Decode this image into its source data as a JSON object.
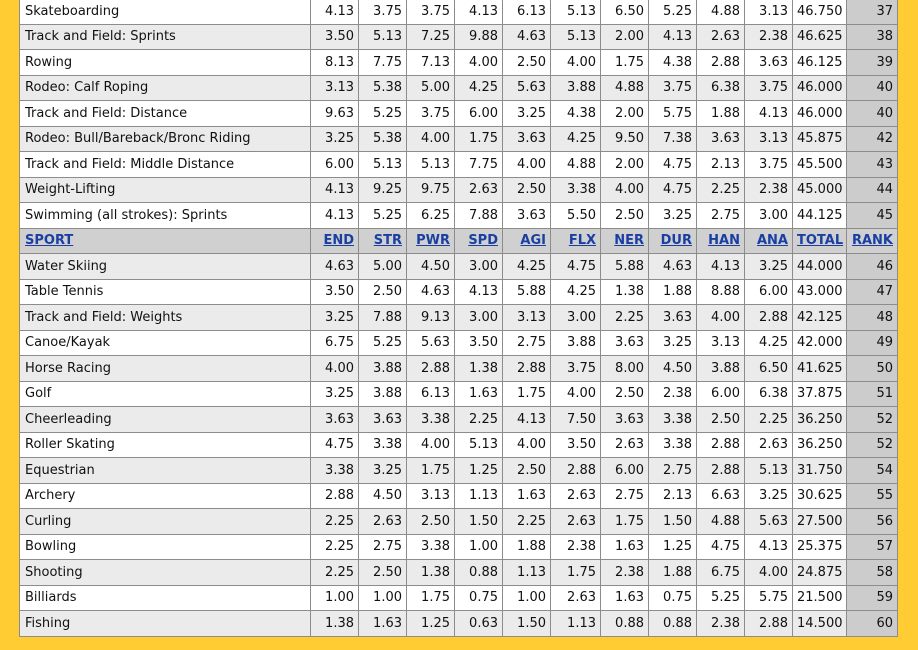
{
  "header": {
    "sport": "SPORT",
    "end": "END",
    "str": "STR",
    "pwr": "PWR",
    "spd": "SPD",
    "agi": "AGI",
    "flx": "FLX",
    "ner": "NER",
    "dur": "DUR",
    "han": "HAN",
    "ana": "ANA",
    "total": "TOTAL",
    "rank": "RANK"
  },
  "rows_top": [
    [
      "Skateboarding",
      "4.13",
      "3.75",
      "3.75",
      "4.13",
      "6.13",
      "5.13",
      "6.50",
      "5.25",
      "4.88",
      "3.13",
      "46.750",
      "37"
    ],
    [
      "Track and Field: Sprints",
      "3.50",
      "5.13",
      "7.25",
      "9.88",
      "4.63",
      "5.13",
      "2.00",
      "4.13",
      "2.63",
      "2.38",
      "46.625",
      "38"
    ],
    [
      "Rowing",
      "8.13",
      "7.75",
      "7.13",
      "4.00",
      "2.50",
      "4.00",
      "1.75",
      "4.38",
      "2.88",
      "3.63",
      "46.125",
      "39"
    ],
    [
      "Rodeo: Calf Roping",
      "3.13",
      "5.38",
      "5.00",
      "4.25",
      "5.63",
      "3.88",
      "4.88",
      "3.75",
      "6.38",
      "3.75",
      "46.000",
      "40"
    ],
    [
      "Track and Field: Distance",
      "9.63",
      "5.25",
      "3.75",
      "6.00",
      "3.25",
      "4.38",
      "2.00",
      "5.75",
      "1.88",
      "4.13",
      "46.000",
      "40"
    ],
    [
      "Rodeo: Bull/Bareback/Bronc Riding",
      "3.25",
      "5.38",
      "4.00",
      "1.75",
      "3.63",
      "4.25",
      "9.50",
      "7.38",
      "3.63",
      "3.13",
      "45.875",
      "42"
    ],
    [
      "Track and Field: Middle Distance",
      "6.00",
      "5.13",
      "5.13",
      "7.75",
      "4.00",
      "4.88",
      "2.00",
      "4.75",
      "2.13",
      "3.75",
      "45.500",
      "43"
    ],
    [
      "Weight-Lifting",
      "4.13",
      "9.25",
      "9.75",
      "2.63",
      "2.50",
      "3.38",
      "4.00",
      "4.75",
      "2.25",
      "2.38",
      "45.000",
      "44"
    ],
    [
      "Swimming (all strokes): Sprints",
      "4.13",
      "5.25",
      "6.25",
      "7.88",
      "3.63",
      "5.50",
      "2.50",
      "3.25",
      "2.75",
      "3.00",
      "44.125",
      "45"
    ]
  ],
  "rows_bottom": [
    [
      "Water Skiing",
      "4.63",
      "5.00",
      "4.50",
      "3.00",
      "4.25",
      "4.75",
      "5.88",
      "4.63",
      "4.13",
      "3.25",
      "44.000",
      "46"
    ],
    [
      "Table Tennis",
      "3.50",
      "2.50",
      "4.63",
      "4.13",
      "5.88",
      "4.25",
      "1.38",
      "1.88",
      "8.88",
      "6.00",
      "43.000",
      "47"
    ],
    [
      "Track and Field: Weights",
      "3.25",
      "7.88",
      "9.13",
      "3.00",
      "3.13",
      "3.00",
      "2.25",
      "3.63",
      "4.00",
      "2.88",
      "42.125",
      "48"
    ],
    [
      "Canoe/Kayak",
      "6.75",
      "5.25",
      "5.63",
      "3.50",
      "2.75",
      "3.88",
      "3.63",
      "3.25",
      "3.13",
      "4.25",
      "42.000",
      "49"
    ],
    [
      "Horse Racing",
      "4.00",
      "3.88",
      "2.88",
      "1.38",
      "2.88",
      "3.75",
      "8.00",
      "4.50",
      "3.88",
      "6.50",
      "41.625",
      "50"
    ],
    [
      "Golf",
      "3.25",
      "3.88",
      "6.13",
      "1.63",
      "1.75",
      "4.00",
      "2.50",
      "2.38",
      "6.00",
      "6.38",
      "37.875",
      "51"
    ],
    [
      "Cheerleading",
      "3.63",
      "3.63",
      "3.38",
      "2.25",
      "4.13",
      "7.50",
      "3.63",
      "3.38",
      "2.50",
      "2.25",
      "36.250",
      "52"
    ],
    [
      "Roller Skating",
      "4.75",
      "3.38",
      "4.00",
      "5.13",
      "4.00",
      "3.50",
      "2.63",
      "3.38",
      "2.88",
      "2.63",
      "36.250",
      "52"
    ],
    [
      "Equestrian",
      "3.38",
      "3.25",
      "1.75",
      "1.25",
      "2.50",
      "2.88",
      "6.00",
      "2.75",
      "2.88",
      "5.13",
      "31.750",
      "54"
    ],
    [
      "Archery",
      "2.88",
      "4.50",
      "3.13",
      "1.13",
      "1.63",
      "2.63",
      "2.75",
      "2.13",
      "6.63",
      "3.25",
      "30.625",
      "55"
    ],
    [
      "Curling",
      "2.25",
      "2.63",
      "2.50",
      "1.50",
      "2.25",
      "2.63",
      "1.75",
      "1.50",
      "4.88",
      "5.63",
      "27.500",
      "56"
    ],
    [
      "Bowling",
      "2.25",
      "2.75",
      "3.38",
      "1.00",
      "1.88",
      "2.38",
      "1.63",
      "1.25",
      "4.75",
      "4.13",
      "25.375",
      "57"
    ],
    [
      "Shooting",
      "2.25",
      "2.50",
      "1.38",
      "0.88",
      "1.13",
      "1.75",
      "2.38",
      "1.88",
      "6.75",
      "4.00",
      "24.875",
      "58"
    ],
    [
      "Billiards",
      "1.00",
      "1.00",
      "1.75",
      "0.75",
      "1.00",
      "2.63",
      "1.63",
      "0.75",
      "5.25",
      "5.75",
      "21.500",
      "59"
    ],
    [
      "Fishing",
      "1.38",
      "1.63",
      "1.25",
      "0.63",
      "1.50",
      "1.13",
      "0.88",
      "0.88",
      "2.38",
      "2.88",
      "14.500",
      "60"
    ]
  ],
  "colors": {
    "page_bg": "#ffcc33",
    "header_bg": "#d0d0d0",
    "header_text": "#1a3fa3",
    "alt_row_bg": "#ebebeb",
    "rank_bg": "#cccccc"
  }
}
